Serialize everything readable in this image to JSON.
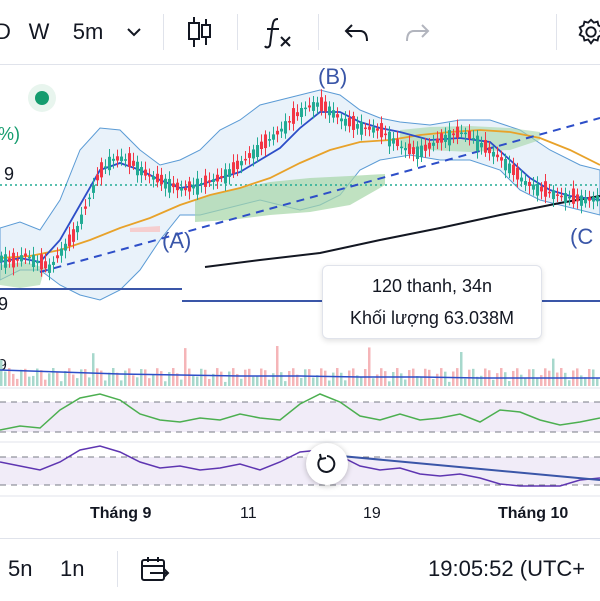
{
  "toolbar": {
    "period_day_partial": "D",
    "period_week": "W",
    "interval": "5m",
    "chevron": "chevron-down-icon",
    "chart_type_icon": "candlestick-icon",
    "indicators_icon": "fx-icon",
    "undo_icon": "undo-icon",
    "redo_icon": "redo-icon",
    "settings_icon": "gear-icon"
  },
  "chart": {
    "left_label_pct": "%)",
    "left_label_9a": "9",
    "left_label_9b": "9",
    "left_label_9c": "9",
    "wave_b": "(B)",
    "wave_a": "(A)",
    "wave_c": "(C",
    "tooltip_bars": "120 thanh, 34n",
    "tooltip_volume": "Khối lượng 63.038M",
    "reset_icon": "reset-icon",
    "colors": {
      "up": "#22ab94",
      "down": "#f23645",
      "bb": "#2962ff",
      "ma": "#f0a020",
      "ichimoku": "#4caf50",
      "rsi": "#4caf50",
      "stoch": "#6a3fa0"
    }
  },
  "x_axis": {
    "sep_label": "Tháng 9",
    "d11": "11",
    "d19": "19",
    "oct_label": "Tháng 10"
  },
  "bottom": {
    "range_5d": "5n",
    "range_1d": "1n",
    "goto_icon": "goto-date-icon",
    "time": "19:05:52 (UTC+"
  }
}
